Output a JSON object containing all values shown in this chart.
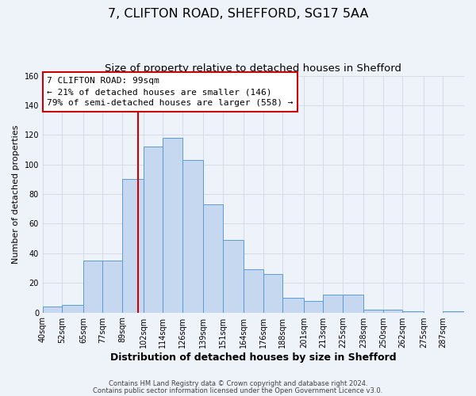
{
  "title": "7, CLIFTON ROAD, SHEFFORD, SG17 5AA",
  "subtitle": "Size of property relative to detached houses in Shefford",
  "xlabel": "Distribution of detached houses by size in Shefford",
  "ylabel": "Number of detached properties",
  "bin_labels": [
    "40sqm",
    "52sqm",
    "65sqm",
    "77sqm",
    "89sqm",
    "102sqm",
    "114sqm",
    "126sqm",
    "139sqm",
    "151sqm",
    "164sqm",
    "176sqm",
    "188sqm",
    "201sqm",
    "213sqm",
    "225sqm",
    "238sqm",
    "250sqm",
    "262sqm",
    "275sqm",
    "287sqm"
  ],
  "bin_edges": [
    40,
    52,
    65,
    77,
    89,
    102,
    114,
    126,
    139,
    151,
    164,
    176,
    188,
    201,
    213,
    225,
    238,
    250,
    262,
    275,
    287,
    300
  ],
  "bar_heights": [
    4,
    5,
    35,
    35,
    90,
    112,
    118,
    103,
    73,
    49,
    29,
    26,
    10,
    8,
    12,
    12,
    2,
    2,
    1,
    0,
    1
  ],
  "bar_facecolor": "#c5d8f0",
  "bar_edgecolor": "#5b9bd5",
  "grid_color": "#d0d8e8",
  "background_color": "#eef2f9",
  "vline_x": 99,
  "vline_color": "#cc0000",
  "annotation_text": "7 CLIFTON ROAD: 99sqm\n← 21% of detached houses are smaller (146)\n79% of semi-detached houses are larger (558) →",
  "annotation_box_edgecolor": "#cc0000",
  "ylim": [
    0,
    160
  ],
  "yticks": [
    0,
    20,
    40,
    60,
    80,
    100,
    120,
    140,
    160
  ],
  "footer_line1": "Contains HM Land Registry data © Crown copyright and database right 2024.",
  "footer_line2": "Contains public sector information licensed under the Open Government Licence v3.0.",
  "title_fontsize": 11.5,
  "subtitle_fontsize": 9.5,
  "xlabel_fontsize": 9,
  "ylabel_fontsize": 8,
  "tick_fontsize": 7,
  "annotation_fontsize": 8,
  "footer_fontsize": 6
}
